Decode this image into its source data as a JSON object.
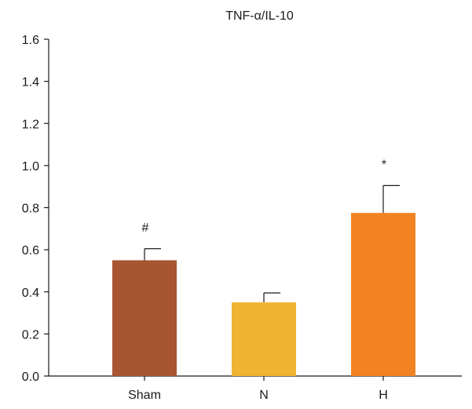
{
  "chart_data": {
    "type": "bar",
    "title": "TNF-α/IL-10",
    "xlabel": "",
    "ylabel": "",
    "categories": [
      "Sham",
      "N",
      "H"
    ],
    "values": [
      0.55,
      0.35,
      0.775
    ],
    "error_upper": [
      0.605,
      0.395,
      0.905
    ],
    "annotations": [
      "#",
      "",
      "*"
    ],
    "colors": [
      "#A85532",
      "#F0B432",
      "#F28323"
    ],
    "ylim": [
      0,
      1.6
    ],
    "yticks": [
      0,
      0.2,
      0.4,
      0.6,
      0.8,
      1.0,
      1.2,
      1.4,
      1.6
    ],
    "ytick_labels": [
      "0.0",
      "0.2",
      "0.4",
      "0.6",
      "0.8",
      "1.0",
      "1.2",
      "1.4",
      "1.6"
    ],
    "grid": false,
    "legend": "none"
  }
}
